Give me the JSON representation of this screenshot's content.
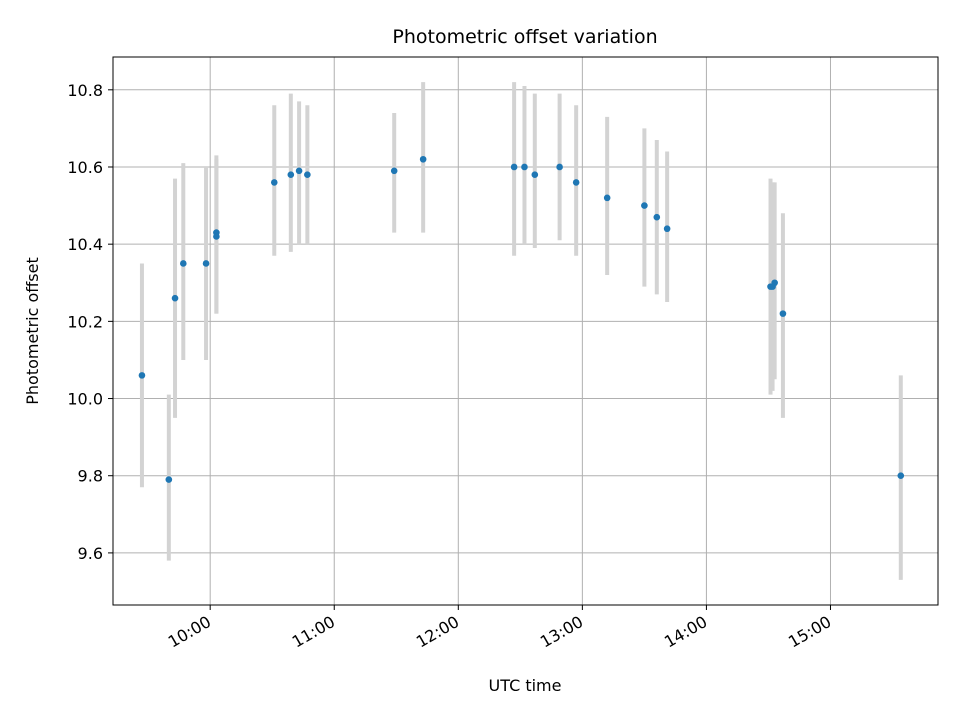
{
  "chart_data": {
    "type": "scatter",
    "title": "Photometric offset variation",
    "xlabel": "UTC time",
    "ylabel": "Photometric offset",
    "x_axis": "time",
    "xlim": [
      "09:13",
      "15:52"
    ],
    "ylim": [
      9.465,
      10.885
    ],
    "x_ticks": [
      "10:00",
      "11:00",
      "12:00",
      "13:00",
      "14:00",
      "15:00"
    ],
    "y_ticks": [
      9.6,
      9.8,
      10.0,
      10.2,
      10.4,
      10.6,
      10.8
    ],
    "y_tick_labels": [
      "9.6",
      "9.8",
      "10.0",
      "10.2",
      "10.4",
      "10.6",
      "10.8"
    ],
    "grid": true,
    "legend": "none",
    "colors": {
      "point": "#1f77b4",
      "errorbar": "#d3d3d3",
      "grid": "#b0b0b0"
    },
    "points": [
      {
        "x": "09:27",
        "y": 10.06,
        "ylow": 9.77,
        "yhigh": 10.35
      },
      {
        "x": "09:40",
        "y": 9.79,
        "ylow": 9.58,
        "yhigh": 10.01
      },
      {
        "x": "09:43",
        "y": 10.26,
        "ylow": 9.95,
        "yhigh": 10.57
      },
      {
        "x": "09:47",
        "y": 10.35,
        "ylow": 10.1,
        "yhigh": 10.61
      },
      {
        "x": "09:58",
        "y": 10.35,
        "ylow": 10.1,
        "yhigh": 10.6
      },
      {
        "x": "10:03",
        "y": 10.43,
        "ylow": 10.22,
        "yhigh": 10.63
      },
      {
        "x": "10:03",
        "y": 10.42,
        "ylow": 10.22,
        "yhigh": 10.62
      },
      {
        "x": "10:31",
        "y": 10.56,
        "ylow": 10.37,
        "yhigh": 10.76
      },
      {
        "x": "10:39",
        "y": 10.58,
        "ylow": 10.38,
        "yhigh": 10.79
      },
      {
        "x": "10:43",
        "y": 10.59,
        "ylow": 10.4,
        "yhigh": 10.77
      },
      {
        "x": "10:47",
        "y": 10.58,
        "ylow": 10.4,
        "yhigh": 10.76
      },
      {
        "x": "11:29",
        "y": 10.59,
        "ylow": 10.43,
        "yhigh": 10.74
      },
      {
        "x": "11:43",
        "y": 10.62,
        "ylow": 10.43,
        "yhigh": 10.82
      },
      {
        "x": "12:27",
        "y": 10.6,
        "ylow": 10.37,
        "yhigh": 10.82
      },
      {
        "x": "12:32",
        "y": 10.6,
        "ylow": 10.4,
        "yhigh": 10.81
      },
      {
        "x": "12:37",
        "y": 10.58,
        "ylow": 10.39,
        "yhigh": 10.79
      },
      {
        "x": "12:49",
        "y": 10.6,
        "ylow": 10.41,
        "yhigh": 10.79
      },
      {
        "x": "12:57",
        "y": 10.56,
        "ylow": 10.37,
        "yhigh": 10.76
      },
      {
        "x": "13:12",
        "y": 10.52,
        "ylow": 10.32,
        "yhigh": 10.73
      },
      {
        "x": "13:30",
        "y": 10.5,
        "ylow": 10.29,
        "yhigh": 10.7
      },
      {
        "x": "13:36",
        "y": 10.47,
        "ylow": 10.27,
        "yhigh": 10.67
      },
      {
        "x": "13:41",
        "y": 10.44,
        "ylow": 10.25,
        "yhigh": 10.64
      },
      {
        "x": "14:31",
        "y": 10.29,
        "ylow": 10.01,
        "yhigh": 10.57
      },
      {
        "x": "14:32",
        "y": 10.29,
        "ylow": 10.02,
        "yhigh": 10.56
      },
      {
        "x": "14:33",
        "y": 10.3,
        "ylow": 10.05,
        "yhigh": 10.56
      },
      {
        "x": "14:37",
        "y": 10.22,
        "ylow": 9.95,
        "yhigh": 10.48
      },
      {
        "x": "15:34",
        "y": 9.8,
        "ylow": 9.53,
        "yhigh": 10.06
      }
    ]
  }
}
